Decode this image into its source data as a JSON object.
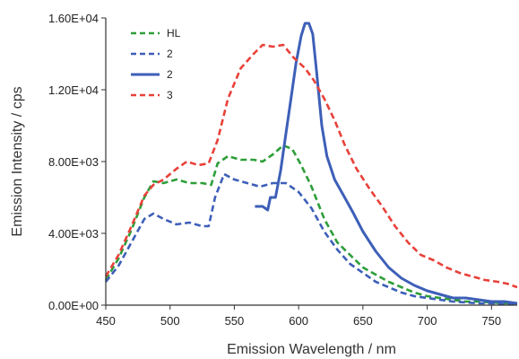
{
  "chart_data": {
    "type": "line",
    "title": "",
    "xlabel": "Emission Wavelength / nm",
    "ylabel": "Emission Intensity / cps",
    "xlim": [
      450,
      770
    ],
    "ylim": [
      0,
      16000
    ],
    "x_ticks": [
      450,
      500,
      550,
      600,
      650,
      700,
      750
    ],
    "y_ticks": [
      0,
      4000,
      8000,
      12000,
      16000
    ],
    "x_tick_labels": [
      "450",
      "500",
      "550",
      "600",
      "650",
      "700",
      "750"
    ],
    "y_tick_labels": [
      "0.00E+00",
      "4.00E+03",
      "8.00E+03",
      "1.20E+04",
      "1.60E+04"
    ],
    "grid": false,
    "legend_position": "top-left",
    "series": [
      {
        "name": "HL",
        "color": "#2e9e3a",
        "style": "dashed",
        "points": [
          [
            450,
            1400
          ],
          [
            460,
            2600
          ],
          [
            470,
            4200
          ],
          [
            480,
            6000
          ],
          [
            487,
            6900
          ],
          [
            495,
            6800
          ],
          [
            505,
            7000
          ],
          [
            515,
            6800
          ],
          [
            525,
            6800
          ],
          [
            532,
            6700
          ],
          [
            537,
            7900
          ],
          [
            545,
            8300
          ],
          [
            555,
            8100
          ],
          [
            565,
            8100
          ],
          [
            572,
            8000
          ],
          [
            580,
            8400
          ],
          [
            588,
            8900
          ],
          [
            595,
            8700
          ],
          [
            602,
            7800
          ],
          [
            610,
            6600
          ],
          [
            620,
            4800
          ],
          [
            630,
            3500
          ],
          [
            640,
            2800
          ],
          [
            650,
            2100
          ],
          [
            660,
            1700
          ],
          [
            670,
            1300
          ],
          [
            680,
            1000
          ],
          [
            690,
            700
          ],
          [
            700,
            500
          ],
          [
            710,
            400
          ],
          [
            720,
            300
          ],
          [
            730,
            200
          ],
          [
            740,
            200
          ],
          [
            750,
            150
          ],
          [
            760,
            100
          ],
          [
            770,
            100
          ]
        ]
      },
      {
        "name": "2",
        "color": "#3d5fb8",
        "style": "dashed",
        "points": [
          [
            450,
            1300
          ],
          [
            460,
            2200
          ],
          [
            470,
            3500
          ],
          [
            480,
            4800
          ],
          [
            487,
            5100
          ],
          [
            495,
            4800
          ],
          [
            505,
            4500
          ],
          [
            515,
            4600
          ],
          [
            525,
            4400
          ],
          [
            530,
            4400
          ],
          [
            535,
            6000
          ],
          [
            542,
            7300
          ],
          [
            550,
            7000
          ],
          [
            560,
            6800
          ],
          [
            570,
            6600
          ],
          [
            580,
            6800
          ],
          [
            590,
            6800
          ],
          [
            600,
            6300
          ],
          [
            610,
            5400
          ],
          [
            620,
            4100
          ],
          [
            630,
            3100
          ],
          [
            640,
            2300
          ],
          [
            650,
            1800
          ],
          [
            660,
            1300
          ],
          [
            670,
            1000
          ],
          [
            680,
            700
          ],
          [
            690,
            500
          ],
          [
            700,
            400
          ],
          [
            710,
            300
          ],
          [
            720,
            200
          ],
          [
            730,
            150
          ],
          [
            740,
            100
          ],
          [
            750,
            100
          ],
          [
            760,
            50
          ],
          [
            770,
            50
          ]
        ]
      },
      {
        "name": "2",
        "color": "#3d5fb8",
        "style": "solid",
        "points": [
          [
            566,
            5500
          ],
          [
            572,
            5500
          ],
          [
            576,
            5300
          ],
          [
            578,
            6000
          ],
          [
            582,
            6000
          ],
          [
            586,
            7500
          ],
          [
            590,
            9500
          ],
          [
            594,
            11500
          ],
          [
            598,
            13500
          ],
          [
            602,
            15000
          ],
          [
            605,
            15700
          ],
          [
            608,
            15700
          ],
          [
            611,
            15100
          ],
          [
            614,
            13000
          ],
          [
            618,
            10000
          ],
          [
            622,
            8300
          ],
          [
            628,
            7000
          ],
          [
            635,
            6100
          ],
          [
            642,
            5200
          ],
          [
            650,
            4100
          ],
          [
            660,
            3000
          ],
          [
            670,
            2100
          ],
          [
            680,
            1500
          ],
          [
            690,
            1100
          ],
          [
            700,
            800
          ],
          [
            710,
            600
          ],
          [
            720,
            400
          ],
          [
            730,
            400
          ],
          [
            740,
            300
          ],
          [
            750,
            200
          ],
          [
            760,
            200
          ],
          [
            770,
            100
          ]
        ]
      },
      {
        "name": "3",
        "color": "#e8413a",
        "style": "dashed",
        "points": [
          [
            450,
            1600
          ],
          [
            460,
            2800
          ],
          [
            470,
            4400
          ],
          [
            480,
            6100
          ],
          [
            487,
            6700
          ],
          [
            495,
            7000
          ],
          [
            505,
            7600
          ],
          [
            513,
            8000
          ],
          [
            522,
            7800
          ],
          [
            530,
            7900
          ],
          [
            537,
            9200
          ],
          [
            545,
            11500
          ],
          [
            555,
            13200
          ],
          [
            565,
            14000
          ],
          [
            572,
            14500
          ],
          [
            580,
            14400
          ],
          [
            588,
            14500
          ],
          [
            596,
            13800
          ],
          [
            605,
            13200
          ],
          [
            612,
            12500
          ],
          [
            620,
            11500
          ],
          [
            628,
            10300
          ],
          [
            636,
            8900
          ],
          [
            645,
            7600
          ],
          [
            655,
            6500
          ],
          [
            665,
            5500
          ],
          [
            675,
            4400
          ],
          [
            685,
            3500
          ],
          [
            695,
            2800
          ],
          [
            705,
            2500
          ],
          [
            715,
            2100
          ],
          [
            725,
            1800
          ],
          [
            735,
            1600
          ],
          [
            745,
            1400
          ],
          [
            755,
            1300
          ],
          [
            762,
            1200
          ],
          [
            770,
            1000
          ]
        ]
      }
    ]
  }
}
